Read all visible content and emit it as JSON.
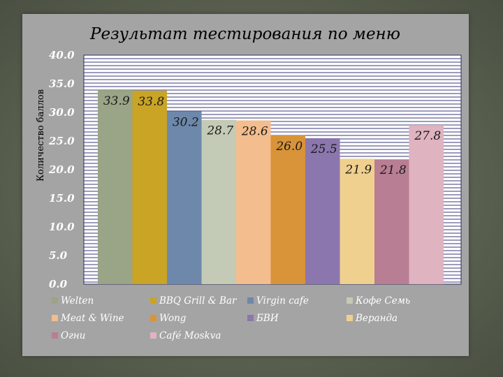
{
  "chart_data": {
    "type": "bar",
    "title": "Результат тестирования по меню",
    "ylabel": "Количество баллов",
    "xlabel": "",
    "ylim": [
      0,
      40
    ],
    "yticks": [
      "0.0",
      "5.0",
      "10.0",
      "15.0",
      "20.0",
      "25.0",
      "30.0",
      "35.0",
      "40.0"
    ],
    "grid": true,
    "legend_position": "bottom",
    "series": [
      {
        "name": "Welten",
        "value": 33.9,
        "label": "33.9",
        "color": "#9aa486"
      },
      {
        "name": "BBQ Grill & Bar",
        "value": 33.8,
        "label": "33.8",
        "color": "#c9a425"
      },
      {
        "name": "Virgin cafe",
        "value": 30.2,
        "label": "30.2",
        "color": "#6d88ab"
      },
      {
        "name": "Кофе Семь",
        "value": 28.7,
        "label": "28.7",
        "color": "#c3cbb6"
      },
      {
        "name": "Meat & Wine",
        "value": 28.6,
        "label": "28.6",
        "color": "#f3bd8d"
      },
      {
        "name": "Wong",
        "value": 26.0,
        "label": "26.0",
        "color": "#d99338"
      },
      {
        "name": "БВИ",
        "value": 25.5,
        "label": "25.5",
        "color": "#8b76ad"
      },
      {
        "name": "Веранда",
        "value": 21.9,
        "label": "21.9",
        "color": "#f0d08e"
      },
      {
        "name": "Огни",
        "value": 21.8,
        "label": "21.8",
        "color": "#b87e93"
      },
      {
        "name": "Café Moskva",
        "value": 27.8,
        "label": "27.8",
        "color": "#dfb3bf"
      }
    ]
  }
}
